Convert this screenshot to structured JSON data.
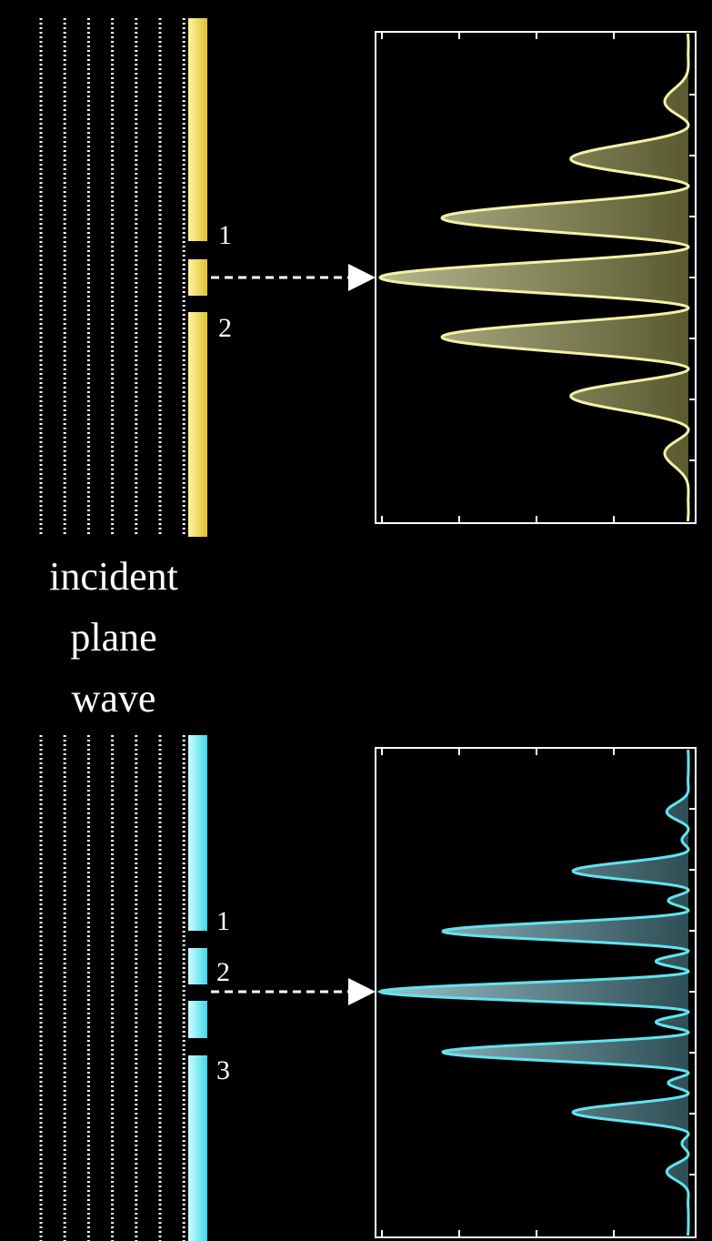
{
  "top": {
    "slit_labels": [
      "1",
      "2"
    ]
  },
  "caption": [
    "incident",
    "plane",
    "wave"
  ],
  "bottom": {
    "slit_labels": [
      "1",
      "2",
      "3"
    ]
  }
}
